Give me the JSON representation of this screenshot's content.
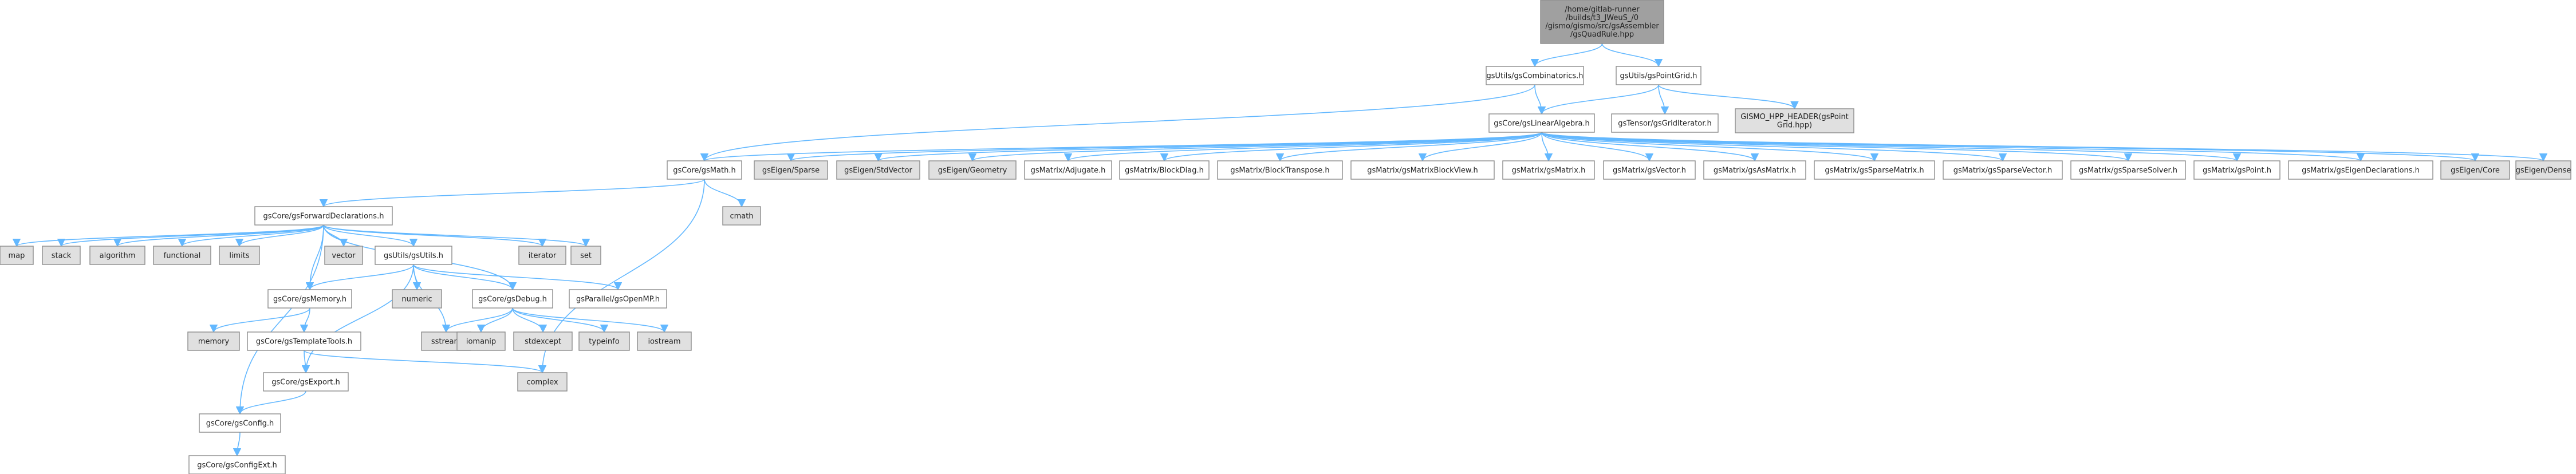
{
  "title": "/home/gitlab-runner/builds/t3_JWeuS_/0/gismo/gismo/src/gsAssembler/gsQuadRule.hpp",
  "colors": {
    "root_fill": "#a0a0a0",
    "file_fill": "#ffffff",
    "system_fill": "#e0e0e0",
    "missing_border": "#ff0000",
    "edge": "#63b8ff",
    "border": "#8c8c8c"
  },
  "nodes": [
    {
      "id": "root",
      "lines": [
        "/home/gitlab-runner",
        "/builds/t3_JWeuS_/0",
        "/gismo/gismo/src/gsAssembler",
        "/gsQuadRule.hpp"
      ],
      "kind": "root"
    },
    {
      "id": "comb",
      "lines": [
        "gsUtils/gsCombinatorics.h"
      ],
      "kind": "file"
    },
    {
      "id": "pgrid",
      "lines": [
        "gsUtils/gsPointGrid.h"
      ],
      "kind": "file"
    },
    {
      "id": "linalg",
      "lines": [
        "gsCore/gsLinearAlgebra.h"
      ],
      "kind": "file"
    },
    {
      "id": "gridit",
      "lines": [
        "gsTensor/gsGridIterator.h"
      ],
      "kind": "file"
    },
    {
      "id": "hppheader",
      "lines": [
        "GISMO_HPP_HEADER(gsPoint",
        "Grid.hpp)"
      ],
      "kind": "system"
    },
    {
      "id": "math",
      "lines": [
        "gsCore/gsMath.h"
      ],
      "kind": "file"
    },
    {
      "id": "esparse",
      "lines": [
        "gsEigen/Sparse"
      ],
      "kind": "system"
    },
    {
      "id": "estdvec",
      "lines": [
        "gsEigen/StdVector"
      ],
      "kind": "system"
    },
    {
      "id": "egeom",
      "lines": [
        "gsEigen/Geometry"
      ],
      "kind": "system"
    },
    {
      "id": "adj",
      "lines": [
        "gsMatrix/Adjugate.h"
      ],
      "kind": "file"
    },
    {
      "id": "bdiag",
      "lines": [
        "gsMatrix/BlockDiag.h"
      ],
      "kind": "file"
    },
    {
      "id": "btrans",
      "lines": [
        "gsMatrix/BlockTranspose.h"
      ],
      "kind": "file"
    },
    {
      "id": "mbview",
      "lines": [
        "gsMatrix/gsMatrixBlockView.h"
      ],
      "kind": "file"
    },
    {
      "id": "mmatrix",
      "lines": [
        "gsMatrix/gsMatrix.h"
      ],
      "kind": "file"
    },
    {
      "id": "mvector",
      "lines": [
        "gsMatrix/gsVector.h"
      ],
      "kind": "file"
    },
    {
      "id": "asmatrix",
      "lines": [
        "gsMatrix/gsAsMatrix.h"
      ],
      "kind": "file"
    },
    {
      "id": "spmatrix",
      "lines": [
        "gsMatrix/gsSparseMatrix.h"
      ],
      "kind": "file"
    },
    {
      "id": "spvector",
      "lines": [
        "gsMatrix/gsSparseVector.h"
      ],
      "kind": "file"
    },
    {
      "id": "spsolver",
      "lines": [
        "gsMatrix/gsSparseSolver.h"
      ],
      "kind": "file"
    },
    {
      "id": "mpoint",
      "lines": [
        "gsMatrix/gsPoint.h"
      ],
      "kind": "file"
    },
    {
      "id": "eigdecl",
      "lines": [
        "gsMatrix/gsEigenDeclarations.h"
      ],
      "kind": "file"
    },
    {
      "id": "ecore",
      "lines": [
        "gsEigen/Core"
      ],
      "kind": "system"
    },
    {
      "id": "edense",
      "lines": [
        "gsEigen/Dense"
      ],
      "kind": "system"
    },
    {
      "id": "fwd",
      "lines": [
        "gsCore/gsForwardDeclarations.h"
      ],
      "kind": "file"
    },
    {
      "id": "cmath",
      "lines": [
        "cmath"
      ],
      "kind": "system"
    },
    {
      "id": "map",
      "lines": [
        "map"
      ],
      "kind": "system"
    },
    {
      "id": "stack",
      "lines": [
        "stack"
      ],
      "kind": "system"
    },
    {
      "id": "algorithm",
      "lines": [
        "algorithm"
      ],
      "kind": "system"
    },
    {
      "id": "functional",
      "lines": [
        "functional"
      ],
      "kind": "system"
    },
    {
      "id": "limits",
      "lines": [
        "limits"
      ],
      "kind": "system"
    },
    {
      "id": "vector",
      "lines": [
        "vector"
      ],
      "kind": "system"
    },
    {
      "id": "utils",
      "lines": [
        "gsUtils/gsUtils.h"
      ],
      "kind": "file"
    },
    {
      "id": "iterator",
      "lines": [
        "iterator"
      ],
      "kind": "system"
    },
    {
      "id": "set",
      "lines": [
        "set"
      ],
      "kind": "system"
    },
    {
      "id": "memoryh",
      "lines": [
        "gsCore/gsMemory.h"
      ],
      "kind": "file"
    },
    {
      "id": "numeric",
      "lines": [
        "numeric"
      ],
      "kind": "system"
    },
    {
      "id": "debug",
      "lines": [
        "gsCore/gsDebug.h"
      ],
      "kind": "file"
    },
    {
      "id": "openmp",
      "lines": [
        "gsParallel/gsOpenMP.h"
      ],
      "kind": "file"
    },
    {
      "id": "memory",
      "lines": [
        "memory"
      ],
      "kind": "system"
    },
    {
      "id": "ttools",
      "lines": [
        "gsCore/gsTemplateTools.h"
      ],
      "kind": "missing"
    },
    {
      "id": "sstream",
      "lines": [
        "sstream"
      ],
      "kind": "system"
    },
    {
      "id": "iomanip",
      "lines": [
        "iomanip"
      ],
      "kind": "system"
    },
    {
      "id": "stdexcept",
      "lines": [
        "stdexcept"
      ],
      "kind": "system"
    },
    {
      "id": "typeinfo",
      "lines": [
        "typeinfo"
      ],
      "kind": "system"
    },
    {
      "id": "iostream",
      "lines": [
        "iostream"
      ],
      "kind": "system"
    },
    {
      "id": "exporth",
      "lines": [
        "gsCore/gsExport.h"
      ],
      "kind": "file"
    },
    {
      "id": "complex",
      "lines": [
        "complex"
      ],
      "kind": "system"
    },
    {
      "id": "config",
      "lines": [
        "gsCore/gsConfig.h"
      ],
      "kind": "file"
    },
    {
      "id": "configext",
      "lines": [
        "gsCore/gsConfigExt.h"
      ],
      "kind": "file"
    }
  ],
  "edges": [
    [
      "root",
      "comb"
    ],
    [
      "root",
      "pgrid"
    ],
    [
      "comb",
      "linalg"
    ],
    [
      "comb",
      "math"
    ],
    [
      "pgrid",
      "linalg"
    ],
    [
      "pgrid",
      "gridit"
    ],
    [
      "pgrid",
      "hppheader"
    ],
    [
      "linalg",
      "math"
    ],
    [
      "linalg",
      "esparse"
    ],
    [
      "linalg",
      "estdvec"
    ],
    [
      "linalg",
      "egeom"
    ],
    [
      "linalg",
      "adj"
    ],
    [
      "linalg",
      "bdiag"
    ],
    [
      "linalg",
      "btrans"
    ],
    [
      "linalg",
      "mbview"
    ],
    [
      "linalg",
      "mmatrix"
    ],
    [
      "linalg",
      "mvector"
    ],
    [
      "linalg",
      "asmatrix"
    ],
    [
      "linalg",
      "spmatrix"
    ],
    [
      "linalg",
      "spvector"
    ],
    [
      "linalg",
      "spsolver"
    ],
    [
      "linalg",
      "mpoint"
    ],
    [
      "linalg",
      "eigdecl"
    ],
    [
      "linalg",
      "ecore"
    ],
    [
      "linalg",
      "edense"
    ],
    [
      "math",
      "fwd"
    ],
    [
      "math",
      "cmath"
    ],
    [
      "math",
      "complex"
    ],
    [
      "fwd",
      "map"
    ],
    [
      "fwd",
      "stack"
    ],
    [
      "fwd",
      "algorithm"
    ],
    [
      "fwd",
      "functional"
    ],
    [
      "fwd",
      "limits"
    ],
    [
      "fwd",
      "vector"
    ],
    [
      "fwd",
      "utils"
    ],
    [
      "fwd",
      "iterator"
    ],
    [
      "fwd",
      "set"
    ],
    [
      "fwd",
      "memoryh"
    ],
    [
      "fwd",
      "debug"
    ],
    [
      "fwd",
      "config"
    ],
    [
      "utils",
      "memoryh"
    ],
    [
      "utils",
      "numeric"
    ],
    [
      "utils",
      "debug"
    ],
    [
      "utils",
      "openmp"
    ],
    [
      "utils",
      "sstream"
    ],
    [
      "utils",
      "exporth"
    ],
    [
      "memoryh",
      "memory"
    ],
    [
      "memoryh",
      "ttools"
    ],
    [
      "ttools",
      "exporth"
    ],
    [
      "ttools",
      "complex"
    ],
    [
      "debug",
      "sstream"
    ],
    [
      "debug",
      "iomanip"
    ],
    [
      "debug",
      "stdexcept"
    ],
    [
      "debug",
      "typeinfo"
    ],
    [
      "debug",
      "iostream"
    ],
    [
      "exporth",
      "config"
    ],
    [
      "config",
      "configext"
    ]
  ]
}
